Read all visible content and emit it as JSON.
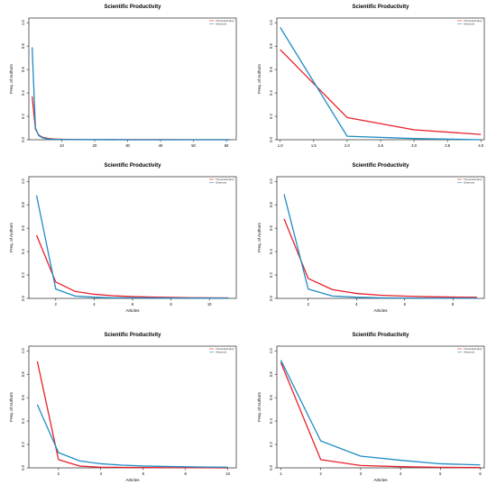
{
  "colors": {
    "theoretical": "#e8202a",
    "observed": "#1e8cc4"
  },
  "chart_data": [
    {
      "type": "line",
      "title": "Scientific Productivity",
      "xlabel": "",
      "ylabel": "Freq. of Authors",
      "xlim": [
        0,
        63
      ],
      "ylim": [
        0,
        1.04
      ],
      "xticks": [
        "10",
        "20",
        "30",
        "40",
        "50",
        "60"
      ],
      "xtickvals": [
        10,
        20,
        30,
        40,
        50,
        60
      ],
      "yticks": [
        "0.0",
        "0.2",
        "0.4",
        "0.6",
        "0.8",
        "1.0"
      ],
      "legend": [
        "Theoretical (Est)",
        "Observed"
      ],
      "legend_position": "top-right",
      "x": [
        1,
        2,
        3,
        4,
        5,
        6,
        8,
        10,
        15,
        20,
        30,
        40,
        50,
        61
      ],
      "series": [
        {
          "name": "Theoretical (Est)",
          "color": "#e8202a",
          "values": [
            0.37,
            0.09,
            0.04,
            0.023,
            0.015,
            0.01,
            0.006,
            0.004,
            0.002,
            0.001,
            0.0005,
            0.0003,
            0.0002,
            0.0001
          ]
        },
        {
          "name": "Observed",
          "color": "#1e8cc4",
          "values": [
            0.79,
            0.1,
            0.035,
            0.018,
            0.01,
            0.006,
            0.003,
            0.002,
            0.001,
            0.0005,
            0.0002,
            0.0001,
            0.0001,
            0.0
          ]
        }
      ]
    },
    {
      "type": "line",
      "title": "Scientific Productivity",
      "xlabel": "",
      "ylabel": "Freq. of Authors",
      "xlim": [
        0.95,
        4.05
      ],
      "ylim": [
        0,
        1.04
      ],
      "xticks": [
        "1.0",
        "1.5",
        "2.0",
        "2.5",
        "3.0",
        "3.5",
        "4.0"
      ],
      "xtickvals": [
        1.0,
        1.5,
        2.0,
        2.5,
        3.0,
        3.5,
        4.0
      ],
      "yticks": [
        "0.0",
        "0.2",
        "0.4",
        "0.6",
        "0.8",
        "1.0"
      ],
      "legend": [
        "Theoretical (Est)",
        "Observed"
      ],
      "legend_position": "top-right",
      "x": [
        1,
        2,
        3,
        4
      ],
      "series": [
        {
          "name": "Theoretical (Est)",
          "color": "#e8202a",
          "values": [
            0.77,
            0.19,
            0.085,
            0.045
          ]
        },
        {
          "name": "Observed",
          "color": "#1e8cc4",
          "values": [
            0.96,
            0.03,
            0.01,
            0.0
          ]
        }
      ]
    },
    {
      "type": "line",
      "title": "Scientific Productivity",
      "xlabel": "Articles",
      "ylabel": "Freq. of Authors",
      "xlim": [
        0.6,
        11.4
      ],
      "ylim": [
        0,
        1.04
      ],
      "xticks": [
        "2",
        "4",
        "6",
        "8",
        "10"
      ],
      "xtickvals": [
        2,
        4,
        6,
        8,
        10
      ],
      "yticks": [
        "0.0",
        "0.2",
        "0.4",
        "0.6",
        "0.8",
        "1.0"
      ],
      "legend": [
        "Theoretical (Est)",
        "Observed"
      ],
      "legend_position": "top-right",
      "x": [
        1,
        2,
        3,
        4,
        5,
        6,
        7,
        8,
        9,
        10,
        11
      ],
      "series": [
        {
          "name": "Theoretical (Est)",
          "color": "#e8202a",
          "values": [
            0.54,
            0.14,
            0.06,
            0.035,
            0.022,
            0.015,
            0.011,
            0.008,
            0.006,
            0.005,
            0.004
          ]
        },
        {
          "name": "Observed",
          "color": "#1e8cc4",
          "values": [
            0.88,
            0.08,
            0.02,
            0.01,
            0.005,
            0.005,
            0.004,
            0.003,
            0.002,
            0.002,
            0.001
          ]
        }
      ]
    },
    {
      "type": "line",
      "title": "Scientific Productivity",
      "xlabel": "Articles",
      "ylabel": "Freq. of Authors",
      "xlim": [
        0.7,
        9.3
      ],
      "ylim": [
        0,
        1.04
      ],
      "xticks": [
        "2",
        "4",
        "6",
        "8"
      ],
      "xtickvals": [
        2,
        4,
        6,
        8
      ],
      "yticks": [
        "0.0",
        "0.2",
        "0.4",
        "0.6",
        "0.8",
        "1.0"
      ],
      "legend": [
        "Theoretical (Est)",
        "Observed"
      ],
      "legend_position": "top-right",
      "x": [
        1,
        2,
        3,
        4,
        5,
        6,
        7,
        8,
        9
      ],
      "series": [
        {
          "name": "Theoretical (Est)",
          "color": "#e8202a",
          "values": [
            0.68,
            0.17,
            0.075,
            0.042,
            0.027,
            0.019,
            0.014,
            0.011,
            0.009
          ]
        },
        {
          "name": "Observed",
          "color": "#1e8cc4",
          "values": [
            0.89,
            0.08,
            0.02,
            0.01,
            0.005,
            0.003,
            0.002,
            0.002,
            0.001
          ]
        }
      ]
    },
    {
      "type": "line",
      "title": "Scientific Productivity",
      "xlabel": "Articles",
      "ylabel": "Freq. of Authors",
      "xlim": [
        0.6,
        10.4
      ],
      "ylim": [
        0,
        1.04
      ],
      "xticks": [
        "2",
        "4",
        "6",
        "8",
        "10"
      ],
      "xtickvals": [
        2,
        4,
        6,
        8,
        10
      ],
      "yticks": [
        "0.0",
        "0.2",
        "0.4",
        "0.6",
        "0.8",
        "1.0"
      ],
      "legend": [
        "Theoretical (Est)",
        "Observed"
      ],
      "legend_position": "top-right",
      "x": [
        1,
        2,
        3,
        4,
        5,
        6,
        7,
        8,
        9,
        10
      ],
      "series": [
        {
          "name": "Theoretical (Est)",
          "color": "#e8202a",
          "values": [
            0.91,
            0.07,
            0.015,
            0.006,
            0.004,
            0.003,
            0.002,
            0.001,
            0.001,
            0.0
          ]
        },
        {
          "name": "Observed",
          "color": "#1e8cc4",
          "values": [
            0.54,
            0.13,
            0.06,
            0.035,
            0.023,
            0.016,
            0.012,
            0.009,
            0.007,
            0.006
          ]
        }
      ]
    },
    {
      "type": "line",
      "title": "Scientific Productivity",
      "xlabel": "Articles",
      "ylabel": "Freq. of Authors",
      "xlim": [
        0.9,
        6.1
      ],
      "ylim": [
        0,
        1.04
      ],
      "xticks": [
        "1",
        "2",
        "3",
        "4",
        "5",
        "6"
      ],
      "xtickvals": [
        1,
        2,
        3,
        4,
        5,
        6
      ],
      "yticks": [
        "0.0",
        "0.2",
        "0.4",
        "0.6",
        "0.8",
        "1.0"
      ],
      "legend": [
        "Theoretical (Est)",
        "Observed"
      ],
      "legend_position": "top-right",
      "x": [
        1,
        2,
        3,
        4,
        5,
        6
      ],
      "series": [
        {
          "name": "Theoretical (Est)",
          "color": "#e8202a",
          "values": [
            0.9,
            0.07,
            0.02,
            0.01,
            0.005,
            0.003
          ]
        },
        {
          "name": "Observed",
          "color": "#1e8cc4",
          "values": [
            0.92,
            0.23,
            0.1,
            0.065,
            0.035,
            0.025
          ]
        }
      ]
    }
  ]
}
